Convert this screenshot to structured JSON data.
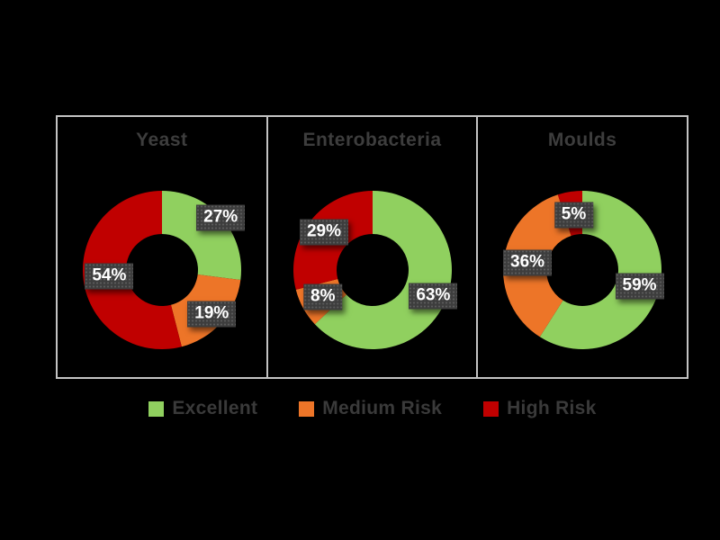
{
  "colors": {
    "excellent": "#90d05f",
    "medium_risk": "#ed7528",
    "high_risk": "#c00000",
    "label_box": "#3d3d3d",
    "label_text": "#ffffff",
    "title_text": "#3d3d3d",
    "panel_border": "#c3c3c3",
    "background": "#000000"
  },
  "legend": {
    "position": "bottom-center",
    "items": [
      {
        "key": "excellent",
        "label": "Excellent"
      },
      {
        "key": "medium_risk",
        "label": "Medium Risk"
      },
      {
        "key": "high_risk",
        "label": "High Risk"
      }
    ]
  },
  "chart_data": [
    {
      "type": "pie",
      "subtype": "donut",
      "title": "Yeast",
      "unit": "%",
      "slices": [
        {
          "name": "Excellent",
          "value": 27,
          "color_key": "excellent"
        },
        {
          "name": "Medium Risk",
          "value": 19,
          "color_key": "medium_risk"
        },
        {
          "name": "High Risk",
          "value": 54,
          "color_key": "high_risk"
        }
      ]
    },
    {
      "type": "pie",
      "subtype": "donut",
      "title": "Enterobacteria",
      "unit": "%",
      "slices": [
        {
          "name": "Excellent",
          "value": 63,
          "color_key": "excellent"
        },
        {
          "name": "Medium Risk",
          "value": 8,
          "color_key": "medium_risk"
        },
        {
          "name": "High Risk",
          "value": 29,
          "color_key": "high_risk"
        }
      ]
    },
    {
      "type": "pie",
      "subtype": "donut",
      "title": "Moulds",
      "unit": "%",
      "slices": [
        {
          "name": "Excellent",
          "value": 59,
          "color_key": "excellent"
        },
        {
          "name": "Medium Risk",
          "value": 36,
          "color_key": "medium_risk"
        },
        {
          "name": "High Risk",
          "value": 5,
          "color_key": "high_risk"
        }
      ]
    }
  ]
}
